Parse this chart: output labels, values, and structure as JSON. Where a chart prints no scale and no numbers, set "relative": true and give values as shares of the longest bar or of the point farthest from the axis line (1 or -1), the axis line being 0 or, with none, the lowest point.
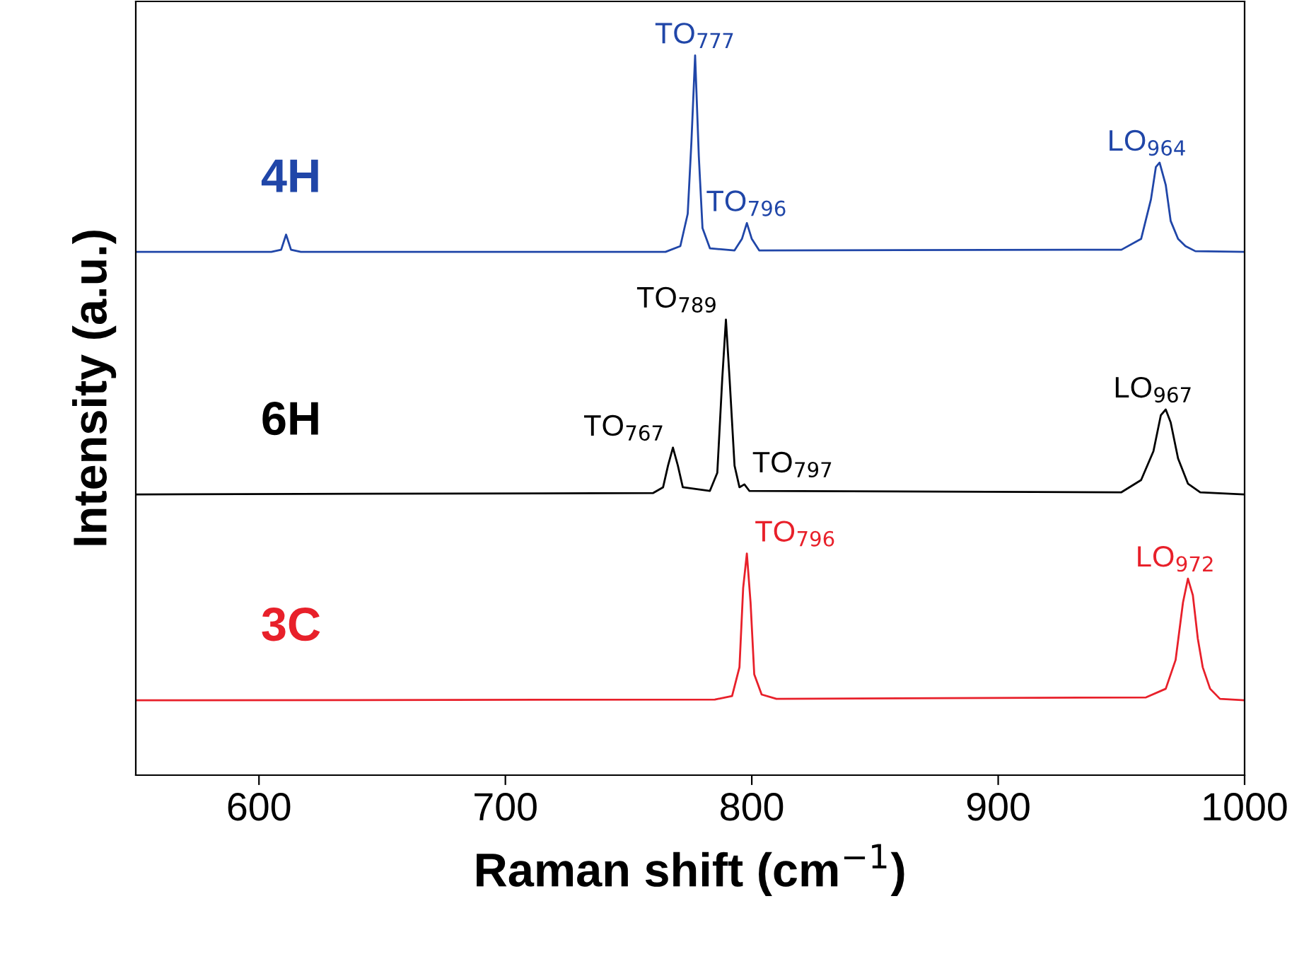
{
  "chart_data": {
    "type": "line",
    "relative": true,
    "xlabel": "Raman shift (cm$^{−1}$)",
    "ylabel": "Intensity (a.u.)",
    "xlim": [
      550,
      1000
    ],
    "xticks": [
      600,
      700,
      800,
      900,
      1000
    ],
    "grid": false,
    "legend": false,
    "marker": "none",
    "line_style": "solid",
    "series": [
      {
        "name": "4H",
        "color": "#2046a8",
        "x": [
          550,
          605,
          609,
          611,
          613,
          617,
          765,
          771,
          774,
          775.5,
          777,
          778.5,
          780,
          783,
          793,
          796,
          798,
          800,
          803,
          950,
          958,
          962,
          964,
          965.5,
          968,
          970,
          973,
          976,
          980,
          1000
        ],
        "values": [
          0.727,
          0.727,
          0.73,
          0.751,
          0.73,
          0.727,
          0.727,
          0.735,
          0.78,
          0.88,
          1.0,
          0.86,
          0.76,
          0.732,
          0.729,
          0.745,
          0.767,
          0.745,
          0.729,
          0.73,
          0.745,
          0.8,
          0.845,
          0.851,
          0.82,
          0.77,
          0.745,
          0.735,
          0.728,
          0.727
        ]
      },
      {
        "name": "6H",
        "color": "#000000",
        "x": [
          550,
          760,
          764,
          766,
          768,
          770,
          772,
          783,
          786,
          788,
          789.5,
          791,
          793,
          795,
          797,
          799,
          950,
          958,
          963,
          966,
          968,
          970,
          973,
          977,
          982,
          1000
        ],
        "values": [
          0.39,
          0.392,
          0.4,
          0.43,
          0.455,
          0.43,
          0.4,
          0.395,
          0.42,
          0.55,
          0.633,
          0.55,
          0.43,
          0.4,
          0.404,
          0.395,
          0.393,
          0.41,
          0.45,
          0.5,
          0.508,
          0.49,
          0.44,
          0.405,
          0.393,
          0.39
        ]
      },
      {
        "name": "3C",
        "color": "#e8202a",
        "x": [
          550,
          785,
          792,
          795,
          796.5,
          798,
          799.5,
          801,
          804,
          810,
          960,
          968,
          972,
          975,
          977,
          979,
          981,
          983,
          986,
          990,
          1000
        ],
        "values": [
          0.104,
          0.105,
          0.11,
          0.15,
          0.26,
          0.308,
          0.24,
          0.14,
          0.112,
          0.106,
          0.108,
          0.12,
          0.16,
          0.24,
          0.273,
          0.25,
          0.19,
          0.15,
          0.12,
          0.106,
          0.104
        ]
      }
    ],
    "annotations": [
      {
        "text": "TO$_{777}$",
        "x": 777,
        "y": 1.0
      },
      {
        "text": "TO$_{796}$",
        "x": 798,
        "y": 0.767
      },
      {
        "text": "LO$_{964}$",
        "x": 965.5,
        "y": 0.851
      },
      {
        "text": "TO$_{767}$",
        "x": 768,
        "y": 0.455
      },
      {
        "text": "TO$_{789}$",
        "x": 789.5,
        "y": 0.633
      },
      {
        "text": "TO$_{797}$",
        "x": 797,
        "y": 0.404
      },
      {
        "text": "LO$_{967}$",
        "x": 968,
        "y": 0.508
      },
      {
        "text": "TO$_{796}$",
        "x": 798,
        "y": 0.308
      },
      {
        "text": "LO$_{972}$",
        "x": 977,
        "y": 0.273
      }
    ]
  }
}
